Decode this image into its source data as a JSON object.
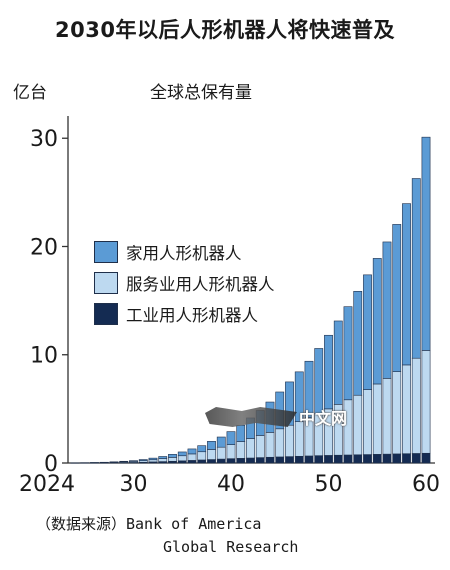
{
  "header": {
    "title": "2030年以后人形机器人将快速普及",
    "unit": "亿台",
    "subtitle": "全球总保有量"
  },
  "source": {
    "line1": "（数据来源）Bank of America",
    "line2": "Global Research"
  },
  "watermark": {
    "text": "中文网"
  },
  "colors": {
    "home": "#5b9bd5",
    "service": "#bdd9f0",
    "industrial": "#142b52",
    "outline": "#1f2f4a"
  },
  "chart_data": {
    "type": "bar",
    "stacked": true,
    "years": [
      2024,
      2025,
      2026,
      2027,
      2028,
      2029,
      2030,
      2031,
      2032,
      2033,
      2034,
      2035,
      2036,
      2037,
      2038,
      2039,
      2040,
      2041,
      2042,
      2043,
      2044,
      2045,
      2046,
      2047,
      2048,
      2049,
      2050,
      2051,
      2052,
      2053,
      2054,
      2055,
      2056,
      2057,
      2058,
      2059,
      2060
    ],
    "xticks": [
      {
        "year": 2024,
        "label": "2024"
      },
      {
        "year": 2030,
        "label": "30"
      },
      {
        "year": 2040,
        "label": "40"
      },
      {
        "year": 2050,
        "label": "50"
      },
      {
        "year": 2060,
        "label": "60"
      }
    ],
    "yticks": [
      0,
      10,
      20,
      30
    ],
    "ylim": [
      0,
      31.5
    ],
    "legend_position": "left-middle",
    "series": [
      {
        "name": "工业用人形机器人",
        "key": "industrial",
        "values": [
          0.005,
          0.01,
          0.015,
          0.02,
          0.03,
          0.04,
          0.05,
          0.07,
          0.1,
          0.13,
          0.16,
          0.2,
          0.24,
          0.28,
          0.32,
          0.36,
          0.4,
          0.43,
          0.46,
          0.5,
          0.53,
          0.56,
          0.59,
          0.62,
          0.65,
          0.68,
          0.7,
          0.72,
          0.74,
          0.76,
          0.78,
          0.8,
          0.82,
          0.84,
          0.86,
          0.88,
          0.9
        ]
      },
      {
        "name": "服务业用人形机器人",
        "key": "service",
        "values": [
          0.005,
          0.01,
          0.02,
          0.03,
          0.05,
          0.07,
          0.1,
          0.15,
          0.2,
          0.28,
          0.36,
          0.47,
          0.6,
          0.76,
          0.93,
          1.1,
          1.3,
          1.55,
          1.8,
          2.05,
          2.3,
          2.6,
          2.9,
          3.2,
          3.55,
          3.9,
          4.3,
          4.7,
          5.1,
          5.5,
          6.0,
          6.5,
          7.0,
          7.6,
          8.2,
          8.8,
          9.5
        ]
      },
      {
        "name": "家用人形机器人",
        "key": "home",
        "values": [
          0.0,
          0.005,
          0.01,
          0.02,
          0.03,
          0.05,
          0.07,
          0.1,
          0.15,
          0.19,
          0.28,
          0.35,
          0.46,
          0.56,
          0.75,
          0.94,
          1.2,
          1.5,
          1.9,
          2.3,
          2.8,
          3.4,
          4.0,
          4.6,
          5.2,
          6.0,
          6.8,
          7.7,
          8.6,
          9.6,
          10.6,
          11.6,
          12.6,
          13.6,
          14.9,
          16.6,
          19.7
        ]
      }
    ]
  }
}
